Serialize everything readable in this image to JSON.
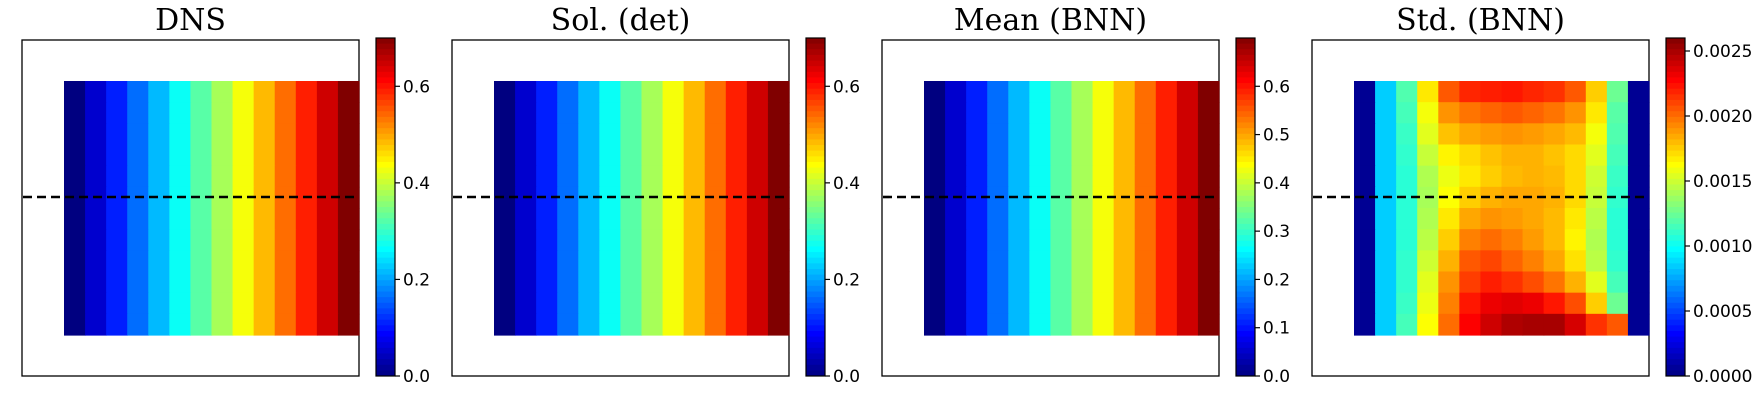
{
  "colors": {
    "colormap": "jet",
    "dashed_line": "#000000",
    "frame": "#000000",
    "background": "#ffffff"
  },
  "chart_data": [
    {
      "type": "heatmap",
      "title": "DNS",
      "colorbar": {
        "range": [
          0,
          0.7
        ],
        "ticks": [
          "0.0",
          "0.2",
          "0.4",
          "0.6"
        ],
        "tick_values": [
          0,
          0.2,
          0.4,
          0.6
        ]
      },
      "grid": {
        "rows": 12,
        "cols": 14
      },
      "column_values": [
        0.0,
        0.054,
        0.108,
        0.162,
        0.215,
        0.269,
        0.323,
        0.377,
        0.431,
        0.485,
        0.538,
        0.592,
        0.646,
        0.7
      ],
      "dashed_line": true
    },
    {
      "type": "heatmap",
      "title": "Sol. (det)",
      "colorbar": {
        "range": [
          0,
          0.7
        ],
        "ticks": [
          "0.0",
          "0.2",
          "0.4",
          "0.6"
        ],
        "tick_values": [
          0,
          0.2,
          0.4,
          0.6
        ]
      },
      "grid": {
        "rows": 12,
        "cols": 14
      },
      "column_values": [
        0.0,
        0.054,
        0.108,
        0.162,
        0.215,
        0.269,
        0.323,
        0.377,
        0.431,
        0.485,
        0.538,
        0.592,
        0.646,
        0.7
      ],
      "dashed_line": true
    },
    {
      "type": "heatmap",
      "title": "Mean (BNN)",
      "colorbar": {
        "range": [
          0,
          0.7
        ],
        "ticks": [
          "0.0",
          "0.1",
          "0.2",
          "0.3",
          "0.4",
          "0.5",
          "0.6"
        ],
        "tick_values": [
          0,
          0.1,
          0.2,
          0.3,
          0.4,
          0.5,
          0.6
        ]
      },
      "grid": {
        "rows": 12,
        "cols": 14
      },
      "column_values": [
        0.0,
        0.054,
        0.108,
        0.162,
        0.215,
        0.269,
        0.323,
        0.377,
        0.431,
        0.485,
        0.538,
        0.592,
        0.646,
        0.7
      ],
      "dashed_line": true
    },
    {
      "type": "heatmap",
      "title": "Std. (BNN)",
      "colorbar": {
        "range": [
          0,
          0.0026
        ],
        "ticks": [
          "0.0000",
          "0.0005",
          "0.0010",
          "0.0015",
          "0.0020",
          "0.0025"
        ],
        "tick_values": [
          0,
          0.0005,
          0.001,
          0.0015,
          0.002,
          0.0025
        ]
      },
      "grid": {
        "rows": 12,
        "cols": 14
      },
      "values": [
        [
          5e-05,
          0.00085,
          0.00118,
          0.00168,
          0.00205,
          0.00218,
          0.0022,
          0.00222,
          0.00218,
          0.00215,
          0.00205,
          0.00175,
          0.00125,
          5e-05
        ],
        [
          5e-05,
          0.00085,
          0.00115,
          0.0016,
          0.0019,
          0.00198,
          0.00202,
          0.00205,
          0.00202,
          0.00198,
          0.0019,
          0.00168,
          0.0012,
          5e-05
        ],
        [
          5e-05,
          0.00085,
          0.00112,
          0.00155,
          0.00178,
          0.00185,
          0.00188,
          0.0019,
          0.00188,
          0.00185,
          0.0018,
          0.0016,
          0.00118,
          5e-05
        ],
        [
          5e-05,
          0.00085,
          0.0011,
          0.00148,
          0.00165,
          0.00172,
          0.00178,
          0.00182,
          0.00182,
          0.00178,
          0.00172,
          0.00155,
          0.00115,
          5e-05
        ],
        [
          5e-05,
          0.00085,
          0.00108,
          0.00142,
          0.00158,
          0.00168,
          0.00175,
          0.0018,
          0.00182,
          0.0018,
          0.00172,
          0.0015,
          0.00112,
          5e-05
        ],
        [
          5e-05,
          0.00085,
          0.00108,
          0.0014,
          0.00162,
          0.00175,
          0.00182,
          0.00185,
          0.00185,
          0.00182,
          0.00172,
          0.00148,
          0.0011,
          5e-05
        ],
        [
          5e-05,
          0.00085,
          0.00108,
          0.00142,
          0.00168,
          0.00185,
          0.0019,
          0.00188,
          0.00185,
          0.0018,
          0.00168,
          0.00145,
          0.00108,
          5e-05
        ],
        [
          5e-05,
          0.00085,
          0.00108,
          0.00145,
          0.00175,
          0.00195,
          0.002,
          0.00195,
          0.00188,
          0.0018,
          0.00165,
          0.00142,
          0.00108,
          5e-05
        ],
        [
          5e-05,
          0.00085,
          0.0011,
          0.0015,
          0.00182,
          0.00205,
          0.0021,
          0.00202,
          0.00195,
          0.00185,
          0.0017,
          0.00145,
          0.0011,
          5e-05
        ],
        [
          5e-05,
          0.00085,
          0.0011,
          0.00155,
          0.0019,
          0.00212,
          0.0022,
          0.00215,
          0.00208,
          0.00198,
          0.00182,
          0.00155,
          0.00115,
          5e-05
        ],
        [
          5e-05,
          0.00085,
          0.00112,
          0.00158,
          0.00195,
          0.00222,
          0.00232,
          0.00235,
          0.00232,
          0.00222,
          0.00208,
          0.00175,
          0.00125,
          5e-05
        ],
        [
          5e-05,
          0.00085,
          0.00115,
          0.00162,
          0.002,
          0.00228,
          0.0024,
          0.00248,
          0.0025,
          0.0025,
          0.00238,
          0.00215,
          0.00205,
          5e-05
        ]
      ],
      "dashed_line": true
    }
  ]
}
